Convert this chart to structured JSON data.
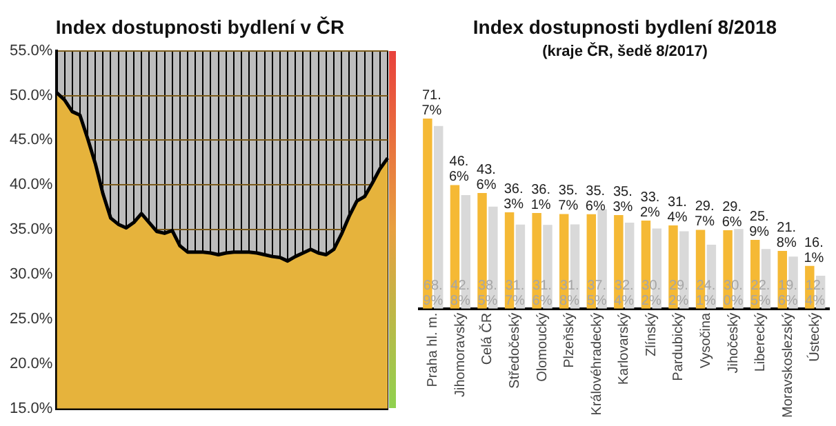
{
  "chart_data": [
    {
      "type": "area",
      "title": "Index dostupnosti bydlení v ČR",
      "categories": [
        null,
        null,
        null,
        null,
        null,
        null,
        null,
        null,
        null,
        null,
        null,
        null,
        null,
        null,
        null,
        null,
        null,
        null,
        null,
        null,
        null,
        null,
        null,
        null,
        null,
        null,
        null,
        null,
        null,
        null,
        null,
        null,
        null,
        null,
        null,
        null,
        null,
        null,
        null,
        null,
        null,
        null,
        null,
        null
      ],
      "series": [
        {
          "color": "#e6b33c",
          "values": [
            50.3,
            49.5,
            48.2,
            47.8,
            45.2,
            42.4,
            39,
            36.3,
            35.6,
            35.2,
            35.8,
            36.8,
            35.8,
            34.8,
            34.6,
            34.9,
            33.2,
            32.5,
            32.5,
            32.5,
            32.4,
            32.2,
            32.4,
            32.5,
            32.5,
            32.5,
            32.4,
            32.2,
            32,
            31.9,
            31.5,
            32,
            32.4,
            32.8,
            32.4,
            32.2,
            32.8,
            34.5,
            36.5,
            38.2,
            38.7,
            40.2,
            41.8,
            43
          ]
        }
      ],
      "ylim": [
        15,
        55
      ],
      "yticks": [
        {
          "value": 15,
          "label": "15.0%"
        },
        {
          "value": 20,
          "label": "20.0%"
        },
        {
          "value": 25,
          "label": "25.0%"
        },
        {
          "value": 30,
          "label": "30.0%"
        },
        {
          "value": 35,
          "label": "35.0%"
        },
        {
          "value": 40,
          "label": "40.0%"
        },
        {
          "value": 45,
          "label": "45.0%"
        },
        {
          "value": 50,
          "label": "50.0%"
        },
        {
          "value": 55,
          "label": "55.0%"
        }
      ],
      "grid": true
    },
    {
      "type": "bar",
      "title": "Index dostupnosti bydlení 8/2018",
      "subtitle": "(kraje ČR, šedě 8/2017)",
      "categories": [
        "Praha hl. m.",
        "Jihomoravský",
        "Celá ČR",
        "Středočeský",
        "Olomoucký",
        "Plzeňský",
        "Královéhradecký",
        "Karlovarský",
        "Zlínský",
        "Pardubický",
        "Vysočina",
        "Jihočeský",
        "Liberecký",
        "Moravskoslezský",
        "Ústecký"
      ],
      "series": [
        {
          "color": "#f5b935",
          "values": [
            71.7,
            46.6,
            43.6,
            36.3,
            36.1,
            35.7,
            35.6,
            35.3,
            33.2,
            31.4,
            29.7,
            29.6,
            25.9,
            21.8,
            16.1
          ],
          "value_labels": [
            "71.7%",
            "46.6%",
            "43.6%",
            "36.3%",
            "36.1%",
            "35.7%",
            "35.6%",
            "35.3%",
            "33.2%",
            "31.4%",
            "29.7%",
            "29.6%",
            "25.9%",
            "21.8%",
            "16.1%"
          ]
        },
        {
          "color": "#d9d9d9",
          "values": [
            68.9,
            42.8,
            38.5,
            31.7,
            31.6,
            31.8,
            37.5,
            32.4,
            30.2,
            29.2,
            24.1,
            30.0,
            22.5,
            19.6,
            12.4
          ],
          "value_labels": [
            "68.9%",
            "42.8%",
            "38.5%",
            "31.7%",
            "31.6%",
            "31.8%",
            "37.5%",
            "32.4%",
            "30.2%",
            "29.2%",
            "24.1%",
            "30.0%",
            "22.5%",
            "19.6%",
            "12.4%"
          ]
        }
      ],
      "tick_labels": "x"
    }
  ]
}
